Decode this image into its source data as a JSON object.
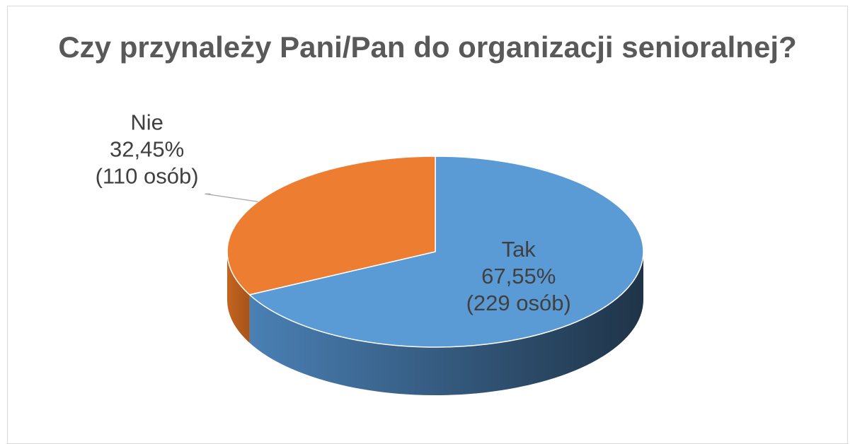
{
  "chart_data": {
    "type": "pie",
    "title": "Czy przynależy Pani/Pan do organizacji senioralnej?",
    "slices": [
      {
        "label": "Tak",
        "percent_label": "67,55%",
        "count_label": "(229 osób)",
        "value": 229,
        "percent": 67.55,
        "color": "#5b9bd5"
      },
      {
        "label": "Nie",
        "percent_label": "32,45%",
        "count_label": "(110 osób)",
        "value": 110,
        "percent": 32.45,
        "color": "#ed7d31"
      }
    ],
    "legend": "none",
    "style": "3d"
  }
}
